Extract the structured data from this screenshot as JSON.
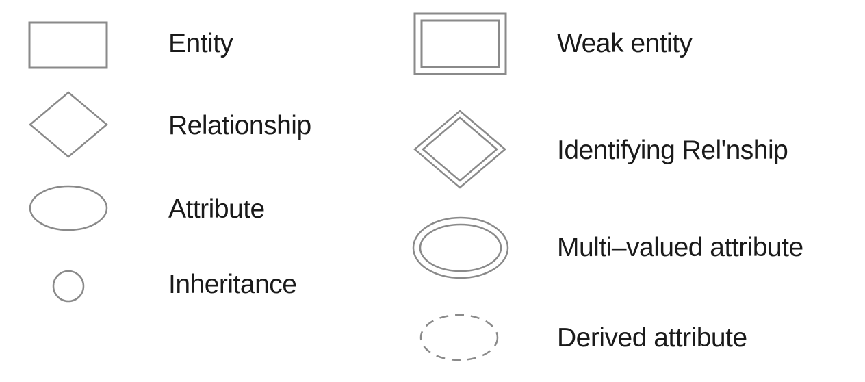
{
  "legend": {
    "colors": {
      "stroke": "#8a8a8a",
      "text": "#1a1a1a",
      "background": "#ffffff"
    },
    "left_column": [
      {
        "icon": "entity-rectangle-icon",
        "label": "Entity"
      },
      {
        "icon": "relationship-diamond-icon",
        "label": "Relationship"
      },
      {
        "icon": "attribute-ellipse-icon",
        "label": "Attribute"
      },
      {
        "icon": "inheritance-circle-icon",
        "label": "Inheritance"
      }
    ],
    "right_column": [
      {
        "icon": "weak-entity-double-rectangle-icon",
        "label": "Weak entity"
      },
      {
        "icon": "identifying-relationship-double-diamond-icon",
        "label": "Identifying Rel'nship"
      },
      {
        "icon": "multi-valued-attribute-double-ellipse-icon",
        "label": "Multi–valued attribute"
      },
      {
        "icon": "derived-attribute-dashed-ellipse-icon",
        "label": "Derived attribute"
      }
    ]
  }
}
